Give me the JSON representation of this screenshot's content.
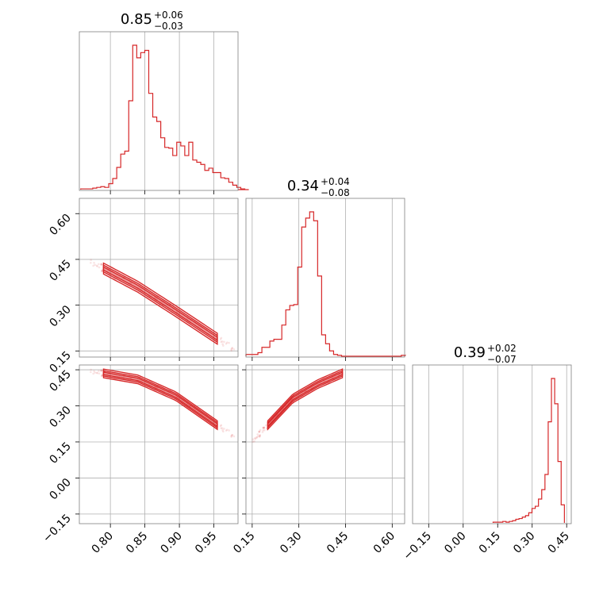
{
  "colors": {
    "accent": "#d62728",
    "frame": "#7f7f7f",
    "grid": "#b0b0b0"
  },
  "chart_data": [
    {
      "type": "histogram",
      "panel": "p0_0",
      "title": {
        "median": "0.85",
        "plus": "+0.06",
        "minus": "−0.03"
      },
      "xlim": [
        0.755,
        0.985
      ],
      "grid_x": [
        0.8,
        0.85,
        0.9,
        0.95
      ],
      "bins": {
        "edges_start": 0.757,
        "bin_width": 0.0058,
        "counts": [
          1,
          1,
          1,
          2,
          3,
          4,
          3,
          8,
          15,
          30,
          48,
          52,
          120,
          195,
          178,
          185,
          188,
          130,
          98,
          92,
          70,
          57,
          56,
          46,
          64,
          59,
          46,
          64,
          40,
          37,
          34,
          26,
          29,
          23,
          23,
          16,
          15,
          10,
          6,
          3,
          1,
          0
        ]
      }
    },
    {
      "type": "histogram",
      "panel": "p1_1",
      "title": {
        "median": "0.34",
        "plus": "+0.04",
        "minus": "−0.08"
      },
      "xlim": [
        0.13,
        0.64
      ],
      "xticks": [
        "0.15",
        "0.30",
        "0.45",
        "0.60"
      ],
      "xtick_values": [
        0.15,
        0.3,
        0.45,
        0.6
      ],
      "bins": {
        "edges_start": 0.13,
        "bin_width": 0.0128,
        "counts": [
          2,
          2,
          2,
          4,
          10,
          10,
          17,
          19,
          19,
          35,
          52,
          57,
          58,
          100,
          145,
          155,
          162,
          152,
          90,
          24,
          14,
          6,
          2,
          1,
          0,
          0,
          0,
          0,
          0,
          0,
          0,
          0,
          0,
          0,
          0,
          0,
          0,
          0,
          0,
          1
        ]
      }
    },
    {
      "type": "histogram",
      "panel": "p2_2",
      "title": {
        "median": "0.39",
        "plus": "+0.02",
        "minus": "−0.07"
      },
      "xlim": [
        -0.22,
        0.47
      ],
      "xticks": [
        "−0.15",
        "0.00",
        "0.15",
        "0.30",
        "0.45"
      ],
      "xtick_values": [
        -0.15,
        0.0,
        0.15,
        0.3,
        0.45
      ],
      "bins": {
        "edges_start": 0.13,
        "bin_width": 0.0141,
        "counts": [
          1,
          1,
          1,
          2,
          1,
          2,
          3,
          5,
          6,
          8,
          10,
          14,
          20,
          23,
          33,
          46,
          67,
          140,
          200,
          165,
          85,
          25
        ]
      }
    },
    {
      "type": "scatter",
      "panel": "p1_0",
      "xlim": [
        0.755,
        0.985
      ],
      "ylim": [
        0.13,
        0.65
      ],
      "yticks": [
        "0.15",
        "0.30",
        "0.45",
        "0.60"
      ],
      "ytick_values": [
        0.15,
        0.3,
        0.45,
        0.6
      ],
      "grid_x": [
        0.8,
        0.85,
        0.9,
        0.95
      ],
      "ridge": {
        "x": [
          0.79,
          0.84,
          0.895,
          0.955
        ],
        "y": [
          0.42,
          0.36,
          0.28,
          0.19
        ]
      }
    },
    {
      "type": "scatter",
      "panel": "p2_0",
      "xlim": [
        0.755,
        0.985
      ],
      "ylim": [
        -0.19,
        0.47
      ],
      "xticks": [
        "0.80",
        "0.85",
        "0.90",
        "0.95"
      ],
      "xtick_values": [
        0.8,
        0.85,
        0.9,
        0.95
      ],
      "yticks": [
        "−0.15",
        "0.00",
        "0.15",
        "0.30",
        "0.45"
      ],
      "ytick_values": [
        -0.15,
        0.0,
        0.15,
        0.3,
        0.45
      ],
      "ridge": {
        "x": [
          0.79,
          0.84,
          0.895,
          0.955
        ],
        "y": [
          0.435,
          0.41,
          0.34,
          0.22
        ]
      }
    },
    {
      "type": "scatter",
      "panel": "p2_1",
      "xlim": [
        0.13,
        0.64
      ],
      "ylim": [
        -0.19,
        0.47
      ],
      "grid_x": [
        0.15,
        0.3,
        0.45,
        0.6
      ],
      "grid_y": [
        -0.15,
        0.0,
        0.15,
        0.3,
        0.45
      ],
      "ridge": {
        "x": [
          0.2,
          0.28,
          0.36,
          0.44
        ],
        "y": [
          0.22,
          0.33,
          0.39,
          0.435
        ]
      }
    }
  ]
}
